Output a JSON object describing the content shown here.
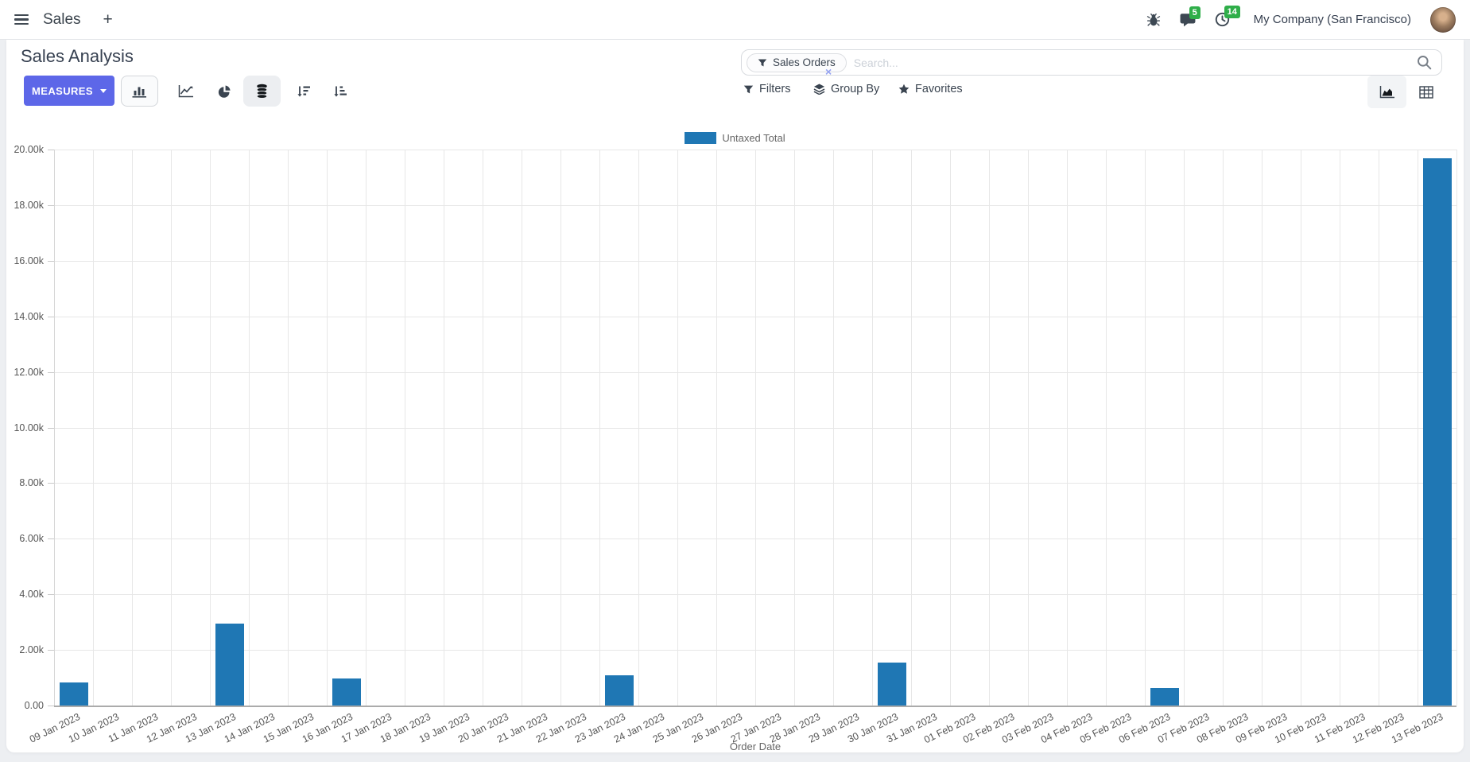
{
  "navbar": {
    "app_name": "Sales",
    "plus_label": "+",
    "messages_badge": "5",
    "activities_badge": "14",
    "company_name": "My Company (San Francisco)"
  },
  "control_panel": {
    "title": "Sales Analysis",
    "measures_label": "MEASURES",
    "filters_label": "Filters",
    "group_by_label": "Group By",
    "favorites_label": "Favorites",
    "search": {
      "facet_label": "Sales Orders",
      "placeholder": "Search...",
      "remove_facet_label": "×"
    }
  },
  "chart_data": {
    "type": "bar",
    "title": "",
    "xlabel": "Order Date",
    "ylabel": "",
    "ylim": [
      0,
      20000
    ],
    "ytick_labels": [
      "0.00",
      "2.00k",
      "4.00k",
      "6.00k",
      "8.00k",
      "10.00k",
      "12.00k",
      "14.00k",
      "16.00k",
      "18.00k",
      "20.00k"
    ],
    "grid": true,
    "legend_position": "top",
    "categories": [
      "09 Jan 2023",
      "10 Jan 2023",
      "11 Jan 2023",
      "12 Jan 2023",
      "13 Jan 2023",
      "14 Jan 2023",
      "15 Jan 2023",
      "16 Jan 2023",
      "17 Jan 2023",
      "18 Jan 2023",
      "19 Jan 2023",
      "20 Jan 2023",
      "21 Jan 2023",
      "22 Jan 2023",
      "23 Jan 2023",
      "24 Jan 2023",
      "25 Jan 2023",
      "26 Jan 2023",
      "27 Jan 2023",
      "28 Jan 2023",
      "29 Jan 2023",
      "30 Jan 2023",
      "31 Jan 2023",
      "01 Feb 2023",
      "02 Feb 2023",
      "03 Feb 2023",
      "04 Feb 2023",
      "05 Feb 2023",
      "06 Feb 2023",
      "07 Feb 2023",
      "08 Feb 2023",
      "09 Feb 2023",
      "10 Feb 2023",
      "11 Feb 2023",
      "12 Feb 2023",
      "13 Feb 2023"
    ],
    "series": [
      {
        "name": "Untaxed Total",
        "color": "#1f77b4",
        "values": [
          820,
          0,
          0,
          0,
          2950,
          0,
          0,
          960,
          0,
          0,
          0,
          0,
          0,
          0,
          1100,
          0,
          0,
          0,
          0,
          0,
          0,
          1540,
          0,
          0,
          0,
          0,
          0,
          0,
          620,
          0,
          0,
          0,
          0,
          0,
          0,
          19690
        ]
      }
    ]
  }
}
